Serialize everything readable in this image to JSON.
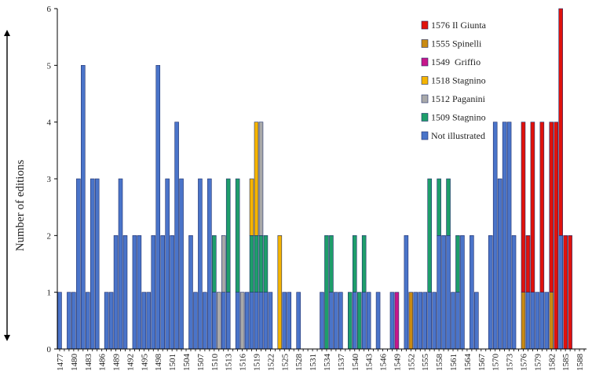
{
  "chart_data": {
    "type": "bar",
    "stacked": true,
    "title": "",
    "xlabel": "",
    "ylabel": "Number of editions",
    "ylim": [
      0,
      6
    ],
    "yticks": [
      0,
      1,
      2,
      3,
      4,
      5,
      6
    ],
    "x_range": [
      1477,
      1589
    ],
    "x_tick_step": 3,
    "grid": false,
    "legend_position": "top-right",
    "series": [
      {
        "name": "Not illustrated",
        "color": "#4a74c9",
        "values": {
          "1477": 1,
          "1479": 1,
          "1480": 1,
          "1481": 3,
          "1482": 5,
          "1483": 1,
          "1484": 3,
          "1485": 3,
          "1487": 1,
          "1488": 1,
          "1489": 2,
          "1490": 3,
          "1491": 2,
          "1493": 2,
          "1494": 2,
          "1495": 1,
          "1496": 1,
          "1497": 2,
          "1498": 5,
          "1499": 2,
          "1500": 3,
          "1501": 2,
          "1502": 4,
          "1503": 3,
          "1505": 2,
          "1506": 1,
          "1507": 3,
          "1508": 1,
          "1509": 3,
          "1510": 1,
          "1512": 1,
          "1513": 1,
          "1515": 1,
          "1517": 1,
          "1518": 1,
          "1519": 1,
          "1520": 1,
          "1521": 1,
          "1522": 1,
          "1525": 1,
          "1526": 1,
          "1528": 1,
          "1533": 1,
          "1535": 1,
          "1536": 1,
          "1537": 1,
          "1540": 1,
          "1542": 1,
          "1543": 1,
          "1545": 1,
          "1548": 1,
          "1551": 2,
          "1553": 1,
          "1554": 1,
          "1555": 1,
          "1556": 1,
          "1557": 1,
          "1558": 2,
          "1559": 2,
          "1560": 2,
          "1561": 1,
          "1562": 1,
          "1563": 2,
          "1565": 2,
          "1566": 1,
          "1569": 2,
          "1570": 4,
          "1571": 3,
          "1572": 4,
          "1573": 4,
          "1574": 2,
          "1577": 1,
          "1578": 1,
          "1579": 1,
          "1580": 1,
          "1581": 1,
          "1584": 2
        }
      },
      {
        "name": "1509 Stagnino",
        "color": "#1e9e6a",
        "values": {
          "1510": 1,
          "1513": 2,
          "1515": 2,
          "1518": 1,
          "1519": 1,
          "1520": 1,
          "1521": 1,
          "1534": 2,
          "1535": 1,
          "1539": 1,
          "1540": 1,
          "1541": 1,
          "1542": 1,
          "1556": 2,
          "1558": 1,
          "1560": 1,
          "1562": 1
        }
      },
      {
        "name": "1512 Paganini",
        "color": "#a9a9a9",
        "values": {
          "1511": 1,
          "1512": 1,
          "1516": 1,
          "1520": 2
        }
      },
      {
        "name": "1518 Stagnino",
        "color": "#f5b400",
        "values": {
          "1518": 1,
          "1519": 2,
          "1524": 2
        }
      },
      {
        "name": "1549  Griffio",
        "color": "#c7168a",
        "values": {
          "1549": 1
        }
      },
      {
        "name": "1555 Spinelli",
        "color": "#c98a12",
        "values": {
          "1552": 1,
          "1576": 1,
          "1582": 1
        }
      },
      {
        "name": "1576 Il Giunta",
        "color": "#e0120c",
        "values": {
          "1576": 3,
          "1577": 1,
          "1578": 3,
          "1580": 3,
          "1582": 3,
          "1583": 4,
          "1584": 4,
          "1585": 2,
          "1586": 2
        }
      }
    ]
  }
}
